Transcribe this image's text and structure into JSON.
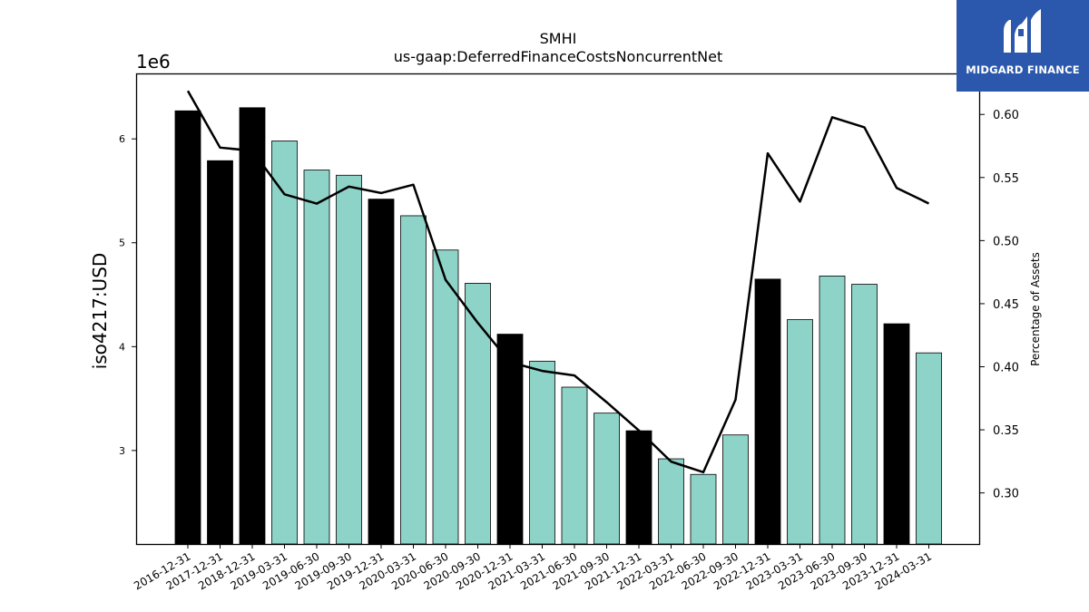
{
  "chart_data": {
    "type": "bar+line",
    "title": "SMHI",
    "subtitle": "us-gaap:DeferredFinanceCostsNoncurrentNet",
    "ylabel_left": "iso4217:USD",
    "ylabel_right": "Percentage of Assets",
    "y_offset_label": "1e6",
    "ylim_left": [
      2100000,
      6630000
    ],
    "ylim_right": [
      0.2595,
      0.6325
    ],
    "yticks_left": [
      3000000,
      4000000,
      5000000,
      6000000
    ],
    "yticks_left_labels": [
      "3",
      "4",
      "5",
      "6"
    ],
    "yticks_right": [
      0.3,
      0.35,
      0.4,
      0.45,
      0.5,
      0.55,
      0.6
    ],
    "yticks_right_labels": [
      "0.30",
      "0.35",
      "0.40",
      "0.45",
      "0.50",
      "0.55",
      "0.60"
    ],
    "categories": [
      "2016-12-31",
      "2017-12-31",
      "2018-12-31",
      "2019-03-31",
      "2019-06-30",
      "2019-09-30",
      "2019-12-31",
      "2020-03-31",
      "2020-06-30",
      "2020-09-30",
      "2020-12-31",
      "2021-03-31",
      "2021-06-30",
      "2021-09-30",
      "2021-12-31",
      "2022-03-31",
      "2022-06-30",
      "2022-09-30",
      "2022-12-31",
      "2023-03-31",
      "2023-06-30",
      "2023-09-30",
      "2023-12-31",
      "2024-03-31"
    ],
    "bar_values": [
      6270000,
      5790000,
      6300000,
      5980000,
      5700000,
      5650000,
      5420000,
      5260000,
      4930000,
      4610000,
      4120000,
      3860000,
      3610000,
      3360000,
      3190000,
      2920000,
      2770000,
      3150000,
      4650000,
      4260000,
      4680000,
      4600000,
      4220000,
      3940000
    ],
    "bar_is_annual": [
      true,
      true,
      true,
      false,
      false,
      false,
      true,
      false,
      false,
      false,
      true,
      false,
      false,
      false,
      true,
      false,
      false,
      false,
      true,
      false,
      false,
      false,
      true,
      false
    ],
    "line_values": [
      0.6187,
      0.5737,
      0.5712,
      0.5367,
      0.5293,
      0.5428,
      0.5377,
      0.5443,
      0.4689,
      0.4348,
      0.4036,
      0.3967,
      0.3931,
      0.3719,
      0.3495,
      0.3248,
      0.3164,
      0.3739,
      0.5692,
      0.5309,
      0.5978,
      0.5898,
      0.5418,
      0.5294
    ],
    "colors": {
      "annual_bar": "#000000",
      "quarter_bar": "#8dd3c7",
      "line": "#000000"
    }
  },
  "logo": {
    "text": "MIDGARD FINANCE"
  }
}
